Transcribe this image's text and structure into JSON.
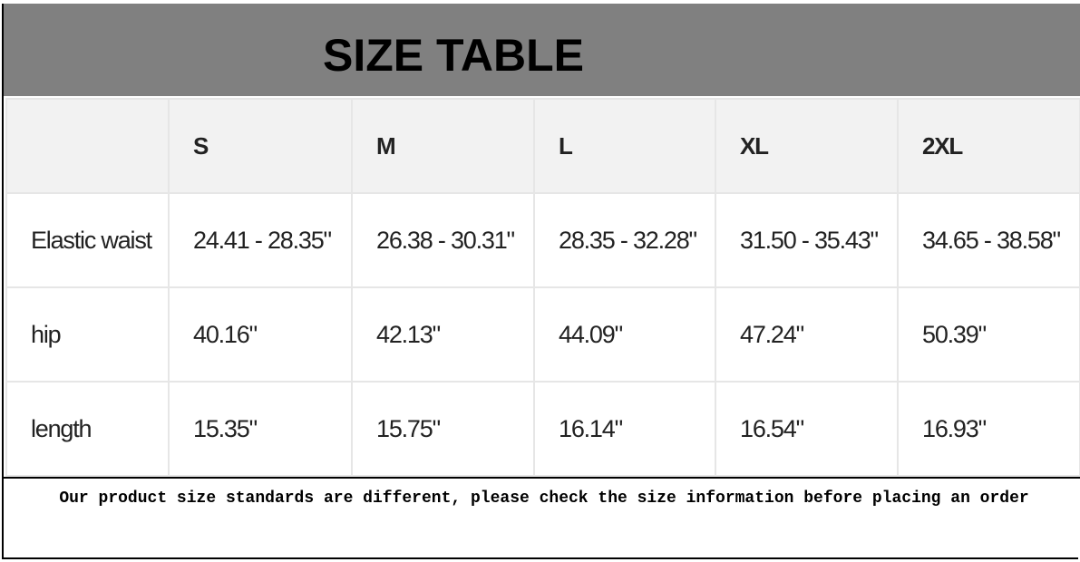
{
  "title": "SIZE TABLE",
  "columns": [
    "",
    "S",
    "M",
    "L",
    "XL",
    "2XL"
  ],
  "rows": [
    {
      "label": "Elastic waist",
      "values": [
        "24.41 - 28.35\"",
        "26.38 - 30.31\"",
        "28.35 - 32.28\"",
        "31.50 - 35.43\"",
        "34.65 - 38.58\""
      ]
    },
    {
      "label": "hip",
      "values": [
        "40.16\"",
        "42.13\"",
        "44.09\"",
        "47.24\"",
        "50.39\""
      ]
    },
    {
      "label": "length",
      "values": [
        "15.35\"",
        "15.75\"",
        "16.14\"",
        "16.54\"",
        "16.93\""
      ]
    }
  ],
  "note": "Our product size standards are different, please check the size information before placing an order",
  "colors": {
    "banner": "#808080",
    "header_row": "#f2f2f2",
    "grid": "#e6e6e6"
  }
}
